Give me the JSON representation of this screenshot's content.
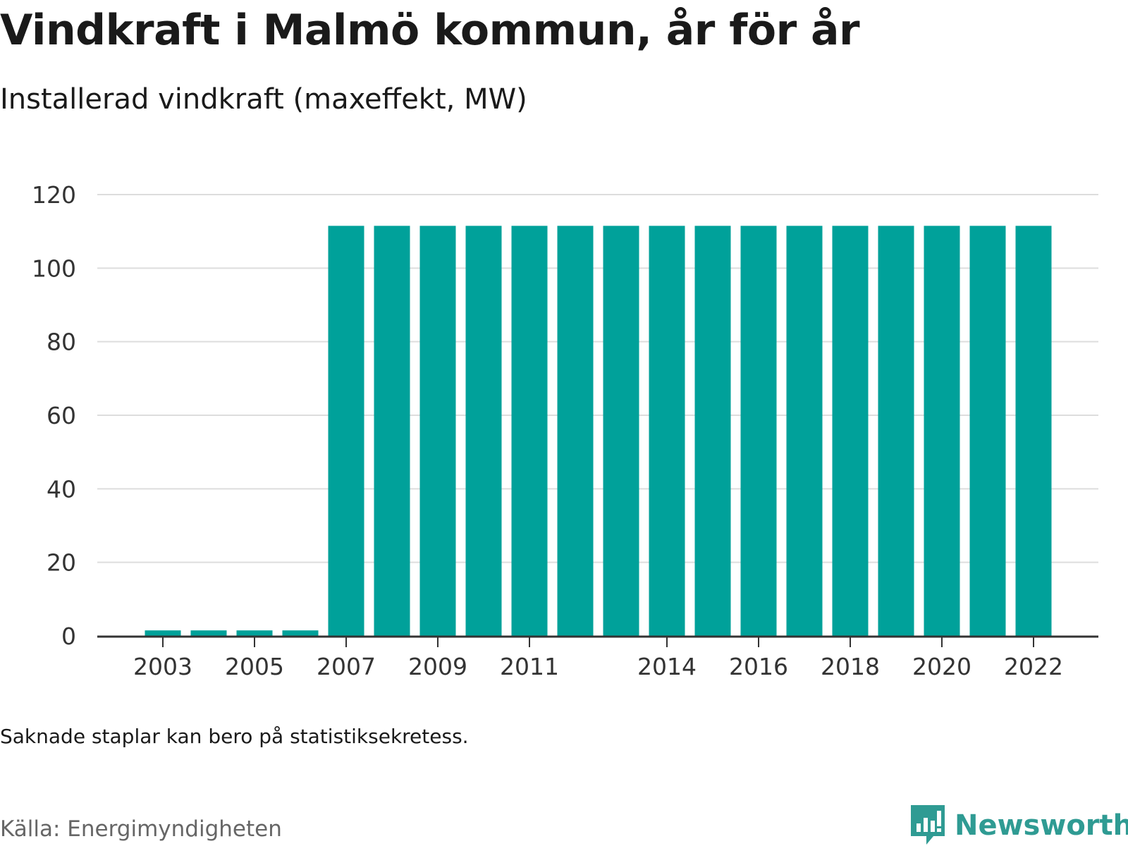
{
  "title": "Vindkraft i Malmö kommun, år för år",
  "subtitle": "Installerad vindkraft (maxeffekt, MW)",
  "note": "Saknade staplar kan bero på statistiksekretess.",
  "source": "Källa: Energimyndigheten",
  "brand": {
    "name": "Newsworthy",
    "icon": "newsworthy-logo-icon",
    "color": "#2f9b93"
  },
  "colors": {
    "bar": "#00a19a",
    "grid": "#dddddd",
    "axis": "#333333"
  },
  "chart_data": {
    "type": "bar",
    "categories": [
      "2003",
      "2004",
      "2005",
      "2006",
      "2007",
      "2008",
      "2009",
      "2010",
      "2011",
      "2012",
      "2013",
      "2014",
      "2015",
      "2016",
      "2017",
      "2018",
      "2019",
      "2020",
      "2021",
      "2022"
    ],
    "values": [
      1.5,
      1.5,
      1.5,
      1.5,
      111.5,
      111.5,
      111.5,
      111.5,
      111.5,
      111.5,
      111.5,
      111.5,
      111.5,
      111.5,
      111.5,
      111.5,
      111.5,
      111.5,
      111.5,
      111.5
    ],
    "x_tick_labels": [
      "2003",
      "2005",
      "2007",
      "2009",
      "2011",
      "2014",
      "2016",
      "2018",
      "2020",
      "2022"
    ],
    "y_ticks": [
      0,
      20,
      40,
      60,
      80,
      100,
      120
    ],
    "ylim": [
      0,
      120
    ],
    "title": "Vindkraft i Malmö kommun, år för år",
    "ylabel": "Installerad vindkraft (maxeffekt, MW)",
    "xlabel": "",
    "grid": true,
    "legend": "none"
  }
}
